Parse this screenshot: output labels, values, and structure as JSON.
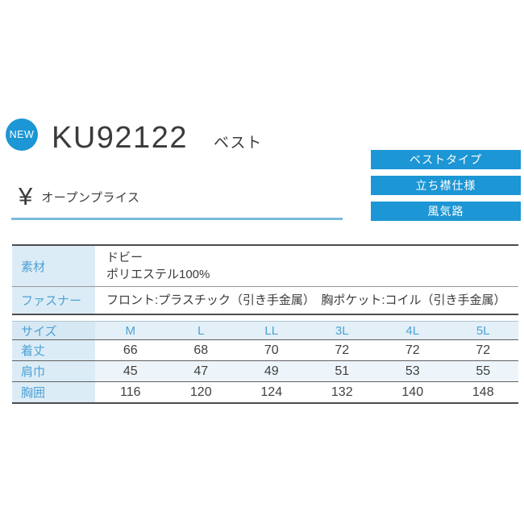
{
  "colors": {
    "accent_blue": "#1c96d5",
    "label_bg": "#dcecf6",
    "label_text": "#4da2d6",
    "underline": "#79bbdd",
    "border_dark": "#4d4d4d",
    "body_text": "#3b3b3b"
  },
  "header": {
    "new_badge": "NEW",
    "product_code": "KU92122",
    "product_type": "ベスト",
    "feature_badges": [
      "ベストタイプ",
      "立ち襟仕様",
      "風気路"
    ]
  },
  "price": {
    "currency_symbol": "¥",
    "label": "オープンプライス"
  },
  "spec_table": {
    "rows": [
      {
        "label": "素材",
        "line1": "ドビー",
        "line2": "ポリエステル100%"
      },
      {
        "label": "ファスナー",
        "value": "フロント:プラスチック（引き手金属）　胸ポケット:コイル（引き手金属）"
      }
    ]
  },
  "size_table": {
    "header_label": "サイズ",
    "columns": [
      "M",
      "L",
      "LL",
      "3L",
      "4L",
      "5L"
    ],
    "rows": [
      {
        "label": "着丈",
        "values": [
          "66",
          "68",
          "70",
          "72",
          "72",
          "72"
        ]
      },
      {
        "label": "肩巾",
        "values": [
          "45",
          "47",
          "49",
          "51",
          "53",
          "55"
        ]
      },
      {
        "label": "胸囲",
        "values": [
          "116",
          "120",
          "124",
          "132",
          "140",
          "148"
        ]
      }
    ]
  }
}
